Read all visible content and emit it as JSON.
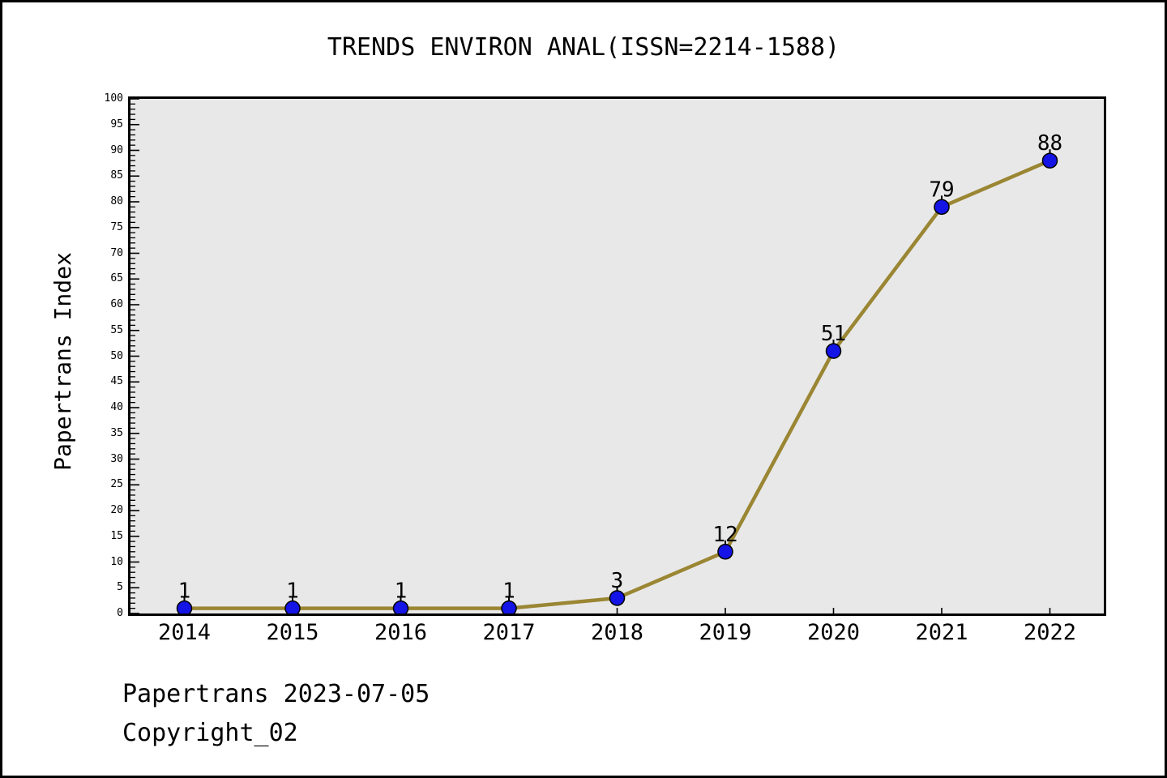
{
  "header": {
    "title": "TRENDS ENVIRON ANAL(ISSN=2214-1588)"
  },
  "footer": {
    "line1": "Papertrans 2023-07-05",
    "line2": "Copyright_02"
  },
  "chart_data": {
    "type": "line",
    "title": "TRENDS ENVIRON ANAL(ISSN=2214-1588)",
    "xlabel": "",
    "ylabel": "Papertrans Index",
    "categories": [
      "2014",
      "2015",
      "2016",
      "2017",
      "2018",
      "2019",
      "2020",
      "2021",
      "2022"
    ],
    "values": [
      1,
      1,
      1,
      1,
      3,
      12,
      51,
      79,
      88
    ],
    "point_labels": [
      "1",
      "1",
      "1",
      "1",
      "3",
      "12",
      "51",
      "79",
      "88"
    ],
    "ylim": [
      0,
      100
    ],
    "y_major_tick_step": 5,
    "y_minor_tick_step": 1,
    "grid": false,
    "legend_position": "none",
    "colors": {
      "plot_background": "#e8e8e8",
      "line": "#9a8633",
      "marker_fill": "#1414e6",
      "marker_edge": "#000000",
      "axis": "#000000",
      "text": "#000000"
    }
  }
}
